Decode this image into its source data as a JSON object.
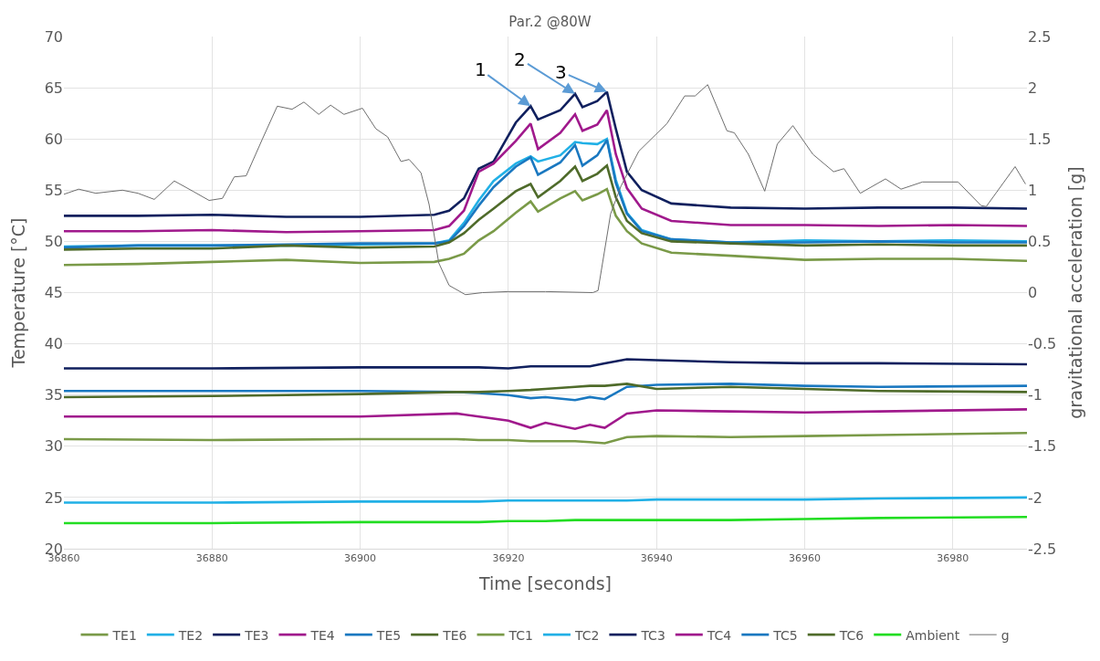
{
  "chart_data": {
    "type": "line",
    "title": "Par.2 @80W",
    "xlabel": "Time [seconds]",
    "ylabel": "Temperature [°C]",
    "y2label": "gravitational acceleration [g]",
    "xlim": [
      36860,
      36990
    ],
    "xticks": [
      36860,
      36880,
      36900,
      36920,
      36940,
      36960,
      36980
    ],
    "ylim": [
      20,
      70
    ],
    "yticks": [
      20,
      25,
      30,
      35,
      40,
      45,
      50,
      55,
      60,
      65,
      70
    ],
    "y2lim": [
      -2.5,
      2.5
    ],
    "y2ticks": [
      -2.5,
      -2,
      -1.5,
      -1,
      -0.5,
      0,
      0.5,
      1,
      1.5,
      2,
      2.5
    ],
    "grid": true,
    "legend": "bottom",
    "annotations": [
      {
        "text": "1",
        "x": 36923,
        "y": 63.2
      },
      {
        "text": "2",
        "x": 36929,
        "y": 64.4
      },
      {
        "text": "3",
        "x": 36933.3,
        "y": 64.6
      }
    ],
    "series": [
      {
        "name": "TE1",
        "color": "#7a9a48",
        "x": [
          36860,
          36870,
          36880,
          36890,
          36900,
          36910,
          36912,
          36914,
          36916,
          36918,
          36921,
          36923,
          36924,
          36927,
          36929,
          36930,
          36932,
          36933.3,
          36934.5,
          36936,
          36938,
          36942,
          36950,
          36960,
          36970,
          36980,
          36990
        ],
        "values": [
          47.7,
          47.8,
          48.0,
          48.2,
          47.9,
          48.0,
          48.3,
          48.8,
          50.1,
          51.0,
          52.8,
          53.9,
          52.9,
          54.2,
          54.9,
          54.0,
          54.6,
          55.1,
          52.5,
          51.0,
          49.8,
          48.9,
          48.6,
          48.2,
          48.3,
          48.3,
          48.1
        ]
      },
      {
        "name": "TE2",
        "color": "#21b0e6",
        "x": [
          36860,
          36870,
          36880,
          36890,
          36900,
          36910,
          36912,
          36914,
          36916,
          36918,
          36921,
          36923,
          36924,
          36927,
          36929,
          36930,
          36932,
          36933.3,
          36934.5,
          36936,
          36938,
          36942,
          36950,
          36960,
          36970,
          36980,
          36990
        ],
        "values": [
          49.5,
          49.6,
          49.6,
          49.6,
          49.7,
          49.8,
          50.1,
          51.8,
          54.0,
          55.9,
          57.6,
          58.3,
          57.8,
          58.4,
          59.7,
          59.6,
          59.5,
          60.0,
          56.0,
          52.8,
          51.1,
          50.2,
          49.9,
          50.1,
          50.0,
          50.1,
          50.0
        ]
      },
      {
        "name": "TE3",
        "color": "#10205e",
        "x": [
          36860,
          36870,
          36880,
          36890,
          36900,
          36910,
          36912,
          36914,
          36916,
          36918,
          36921,
          36923,
          36924,
          36927,
          36929,
          36930,
          36932,
          36933.3,
          36934.5,
          36936,
          36938,
          36942,
          36950,
          36960,
          36970,
          36980,
          36990
        ],
        "values": [
          52.5,
          52.5,
          52.6,
          52.4,
          52.4,
          52.6,
          53.0,
          54.2,
          57.1,
          57.8,
          61.6,
          63.2,
          61.9,
          62.8,
          64.4,
          63.1,
          63.7,
          64.6,
          61.0,
          56.8,
          55.0,
          53.7,
          53.3,
          53.2,
          53.3,
          53.3,
          53.2
        ]
      },
      {
        "name": "TE4",
        "color": "#a0198c",
        "x": [
          36860,
          36870,
          36880,
          36890,
          36900,
          36910,
          36912,
          36914,
          36916,
          36918,
          36921,
          36923,
          36924,
          36927,
          36929,
          36930,
          36932,
          36933.3,
          36934.5,
          36936,
          36938,
          36942,
          36950,
          36960,
          36970,
          36980,
          36990
        ],
        "values": [
          51.0,
          51.0,
          51.1,
          50.9,
          51.0,
          51.1,
          51.5,
          53.0,
          56.8,
          57.6,
          59.8,
          61.5,
          59.0,
          60.6,
          62.4,
          60.8,
          61.4,
          62.8,
          58.5,
          55.2,
          53.2,
          52.0,
          51.6,
          51.6,
          51.5,
          51.6,
          51.5
        ]
      },
      {
        "name": "TE5",
        "color": "#1a78c0",
        "x": [
          36860,
          36870,
          36880,
          36890,
          36900,
          36910,
          36912,
          36914,
          36916,
          36918,
          36921,
          36923,
          36924,
          36927,
          36929,
          36930,
          36932,
          36933.3,
          36934.5,
          36936,
          36938,
          36942,
          36950,
          36960,
          36970,
          36980,
          36990
        ],
        "values": [
          49.4,
          49.6,
          49.6,
          49.7,
          49.8,
          49.8,
          50.0,
          51.5,
          53.5,
          55.3,
          57.3,
          58.2,
          56.5,
          57.7,
          59.4,
          57.4,
          58.4,
          59.9,
          55.7,
          52.7,
          51.0,
          50.2,
          49.9,
          49.9,
          50.0,
          49.9,
          49.9
        ]
      },
      {
        "name": "TE6",
        "color": "#4f6b2a",
        "x": [
          36860,
          36870,
          36880,
          36890,
          36900,
          36910,
          36912,
          36914,
          36916,
          36918,
          36921,
          36923,
          36924,
          36927,
          36929,
          36930,
          36932,
          36933.3,
          36934.5,
          36936,
          36938,
          36942,
          36950,
          36960,
          36970,
          36980,
          36990
        ],
        "values": [
          49.2,
          49.3,
          49.3,
          49.6,
          49.4,
          49.5,
          49.9,
          50.8,
          52.1,
          53.2,
          54.9,
          55.6,
          54.3,
          55.9,
          57.3,
          55.9,
          56.6,
          57.4,
          54.3,
          52.0,
          50.8,
          50.0,
          49.8,
          49.6,
          49.7,
          49.6,
          49.6
        ]
      },
      {
        "name": "TC1",
        "color": "#7a9a48",
        "x": [
          36860,
          36880,
          36900,
          36913,
          36916,
          36920,
          36923,
          36925,
          36929,
          36931,
          36933,
          36936,
          36940,
          36950,
          36960,
          36970,
          36990
        ],
        "values": [
          30.7,
          30.6,
          30.7,
          30.7,
          30.6,
          30.6,
          30.5,
          30.5,
          30.5,
          30.4,
          30.3,
          30.9,
          31.0,
          30.9,
          31.0,
          31.1,
          31.3
        ]
      },
      {
        "name": "TC2",
        "color": "#21b0e6",
        "x": [
          36860,
          36880,
          36900,
          36913,
          36916,
          36920,
          36923,
          36925,
          36929,
          36931,
          36933,
          36936,
          36940,
          36950,
          36960,
          36970,
          36990
        ],
        "values": [
          24.5,
          24.5,
          24.6,
          24.6,
          24.6,
          24.7,
          24.7,
          24.7,
          24.7,
          24.7,
          24.7,
          24.7,
          24.8,
          24.8,
          24.8,
          24.9,
          25.0
        ]
      },
      {
        "name": "TC3",
        "color": "#10205e",
        "x": [
          36860,
          36880,
          36900,
          36913,
          36916,
          36920,
          36923,
          36925,
          36929,
          36931,
          36933,
          36936,
          36940,
          36950,
          36960,
          36970,
          36990
        ],
        "values": [
          37.6,
          37.6,
          37.7,
          37.7,
          37.7,
          37.6,
          37.8,
          37.8,
          37.8,
          37.8,
          38.1,
          38.5,
          38.4,
          38.2,
          38.1,
          38.1,
          38.0
        ]
      },
      {
        "name": "TC4",
        "color": "#a0198c",
        "x": [
          36860,
          36880,
          36900,
          36913,
          36916,
          36920,
          36923,
          36925,
          36929,
          36931,
          36933,
          36936,
          36940,
          36950,
          36960,
          36970,
          36990
        ],
        "values": [
          32.9,
          32.9,
          32.9,
          33.2,
          32.9,
          32.5,
          31.8,
          32.3,
          31.7,
          32.1,
          31.8,
          33.2,
          33.5,
          33.4,
          33.3,
          33.4,
          33.6
        ]
      },
      {
        "name": "TC5",
        "color": "#1a78c0",
        "x": [
          36860,
          36880,
          36900,
          36913,
          36916,
          36920,
          36923,
          36925,
          36929,
          36931,
          36933,
          36936,
          36940,
          36950,
          36960,
          36970,
          36990
        ],
        "values": [
          35.4,
          35.4,
          35.4,
          35.3,
          35.2,
          35.0,
          34.7,
          34.8,
          34.5,
          34.8,
          34.6,
          35.8,
          36.0,
          36.1,
          35.9,
          35.8,
          35.9
        ]
      },
      {
        "name": "TC6",
        "color": "#4f6b2a",
        "x": [
          36860,
          36880,
          36900,
          36913,
          36916,
          36920,
          36923,
          36925,
          36929,
          36931,
          36933,
          36936,
          36940,
          36950,
          36960,
          36970,
          36990
        ],
        "values": [
          34.8,
          34.9,
          35.1,
          35.3,
          35.3,
          35.4,
          35.5,
          35.6,
          35.8,
          35.9,
          35.9,
          36.1,
          35.6,
          35.8,
          35.6,
          35.4,
          35.3
        ]
      },
      {
        "name": "Ambient",
        "color": "#22dd22",
        "x": [
          36860,
          36880,
          36900,
          36913,
          36916,
          36920,
          36923,
          36925,
          36929,
          36931,
          36933,
          36936,
          36940,
          36950,
          36960,
          36970,
          36990
        ],
        "values": [
          22.5,
          22.5,
          22.6,
          22.6,
          22.6,
          22.7,
          22.7,
          22.7,
          22.8,
          22.8,
          22.8,
          22.8,
          22.8,
          22.8,
          22.9,
          23.0,
          23.1
        ]
      },
      {
        "name": "g",
        "color": "#6e6e6e",
        "axis": "y2",
        "x": [
          36860,
          36862,
          36864.3,
          36867.9,
          36870,
          36872.2,
          36874.9,
          36877.4,
          36879.6,
          36881.4,
          36883,
          36884.6,
          36886.8,
          36888.8,
          36890.8,
          36892.4,
          36894.4,
          36896,
          36897.8,
          36900.3,
          36902.1,
          36903.7,
          36905.5,
          36906.6,
          36908.2,
          36909.3,
          36910.6,
          36912,
          36914.2,
          36916.5,
          36920,
          36925,
          36931.4,
          36932.1,
          36933.8,
          36935.2,
          36937.6,
          36941.4,
          36943.8,
          36945.2,
          36946.9,
          36949.5,
          36950.5,
          36952.4,
          36954.6,
          36956.3,
          36958.4,
          36961.1,
          36963.9,
          36965.3,
          36967.5,
          36970.9,
          36973,
          36975.9,
          36980.7,
          36983.8,
          36984.5,
          36988.4,
          36989.8
        ],
        "values": [
          0.96,
          1.01,
          0.97,
          1.0,
          0.97,
          0.91,
          1.09,
          0.99,
          0.9,
          0.92,
          1.13,
          1.14,
          1.5,
          1.82,
          1.79,
          1.86,
          1.74,
          1.83,
          1.74,
          1.8,
          1.6,
          1.52,
          1.28,
          1.3,
          1.17,
          0.86,
          0.29,
          0.07,
          -0.02,
          0.0,
          0.01,
          0.01,
          0.0,
          0.02,
          0.77,
          1.04,
          1.38,
          1.65,
          1.92,
          1.92,
          2.03,
          1.58,
          1.56,
          1.35,
          0.99,
          1.45,
          1.63,
          1.35,
          1.18,
          1.21,
          0.97,
          1.11,
          1.01,
          1.08,
          1.08,
          0.85,
          0.84,
          1.23,
          1.06
        ]
      }
    ]
  }
}
